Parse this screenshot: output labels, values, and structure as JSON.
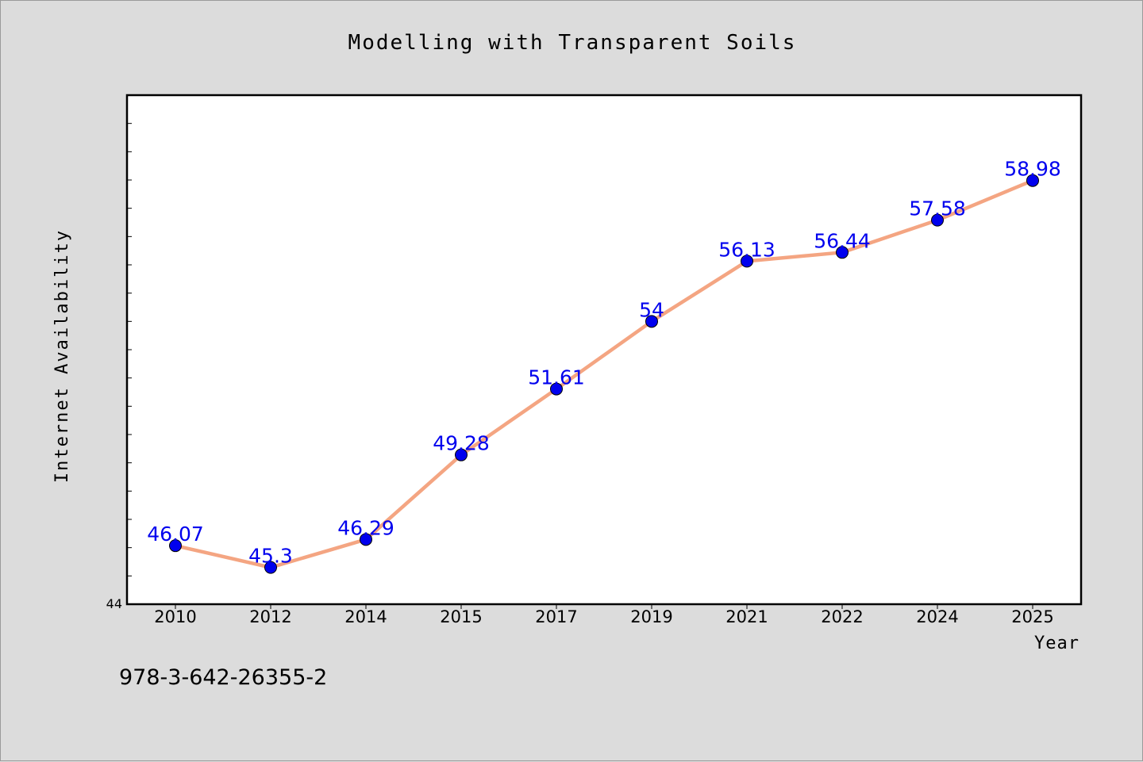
{
  "chart_data": {
    "type": "line",
    "title": "Modelling with Transparent Soils",
    "xlabel": "Year",
    "ylabel": "Internet Availability",
    "categories": [
      "2010",
      "2012",
      "2014",
      "2015",
      "2017",
      "2019",
      "2021",
      "2022",
      "2024",
      "2025"
    ],
    "series": [
      {
        "values": [
          46.07,
          45.3,
          46.29,
          49.28,
          51.61,
          54,
          56.13,
          56.44,
          57.58,
          58.98
        ],
        "labels": [
          "46.07",
          "45.3",
          "46.29",
          "49.28",
          "51.61",
          "54",
          "56.13",
          "56.44",
          "57.58",
          "58.98"
        ]
      }
    ],
    "ylim": [
      44,
      62
    ],
    "y_tick_labels": [
      "44"
    ],
    "grid": false,
    "legend": "none",
    "colors": {
      "line": "#f4a582",
      "marker": "#0000ee",
      "data_label": "#0000ee",
      "plot_background": "#ffffff",
      "figure_background": "#dcdcdc"
    }
  },
  "footer": {
    "isbn": "978-3-642-26355-2"
  }
}
